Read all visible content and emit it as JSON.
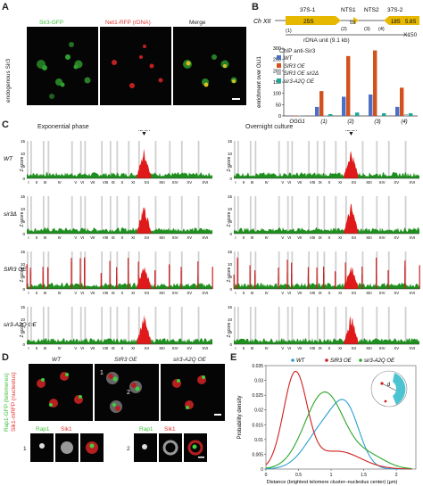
{
  "panelA": {
    "letter": "A",
    "side_label": "endogenous Sir3",
    "columns": [
      {
        "label": "Sir3-GFP",
        "color": "#3fbf3f"
      },
      {
        "label": "Net1-RFP (rDNA)",
        "color": "#e0332e"
      },
      {
        "label": "Merge",
        "color": "#222222"
      }
    ]
  },
  "panelB": {
    "letter": "B",
    "chrom": "Ch XII",
    "regions": [
      "37S-1",
      "NTS1",
      "NTS2",
      "37S-2"
    ],
    "genes": [
      "25S",
      "5S",
      "18S",
      "5.8S"
    ],
    "primers": [
      "(1)",
      "(2)",
      "(3)",
      "(4)"
    ],
    "unit_label": "rDNA unit (9.1 kb)",
    "x150": "X150",
    "ylabel": "enrichment  over OLI1",
    "legend_title": "ChIP anti-Sir3",
    "colors": {
      "WT": "#4b6fc4",
      "SIR3_OE": "#d2521d",
      "SIR3_OE_sir2": "#b8b8b8",
      "sir3_A2Q_OE": "#1fa69a"
    }
  },
  "chart_data": {
    "type": "bar",
    "categories": [
      "OGG1",
      "(1)",
      "(2)",
      "(3)",
      "(4)"
    ],
    "series": [
      {
        "name": "WT",
        "values": [
          1,
          40,
          85,
          95,
          40
        ]
      },
      {
        "name": "SIR3 OE",
        "values": [
          2,
          110,
          265,
          290,
          125
        ]
      },
      {
        "name": "SIR3 OE sir2Δ",
        "values": [
          1,
          3,
          5,
          3,
          8
        ]
      },
      {
        "name": "sir3-A2Q OE",
        "values": [
          1,
          8,
          15,
          12,
          12
        ]
      }
    ],
    "ylim": [
      0,
      300
    ],
    "yticks": [
      "0",
      "50",
      "100",
      "150",
      "200",
      "250",
      "300"
    ]
  },
  "panelC": {
    "letter": "C",
    "left_title": "Exponential phase",
    "right_title": "Overnight culture",
    "rdna_label": "rDNA",
    "ylabel": "Z-score",
    "rows": [
      "WT",
      "sir3Δ",
      "SIR3 OE",
      "sir3-A2Q OE"
    ],
    "yticks": [
      "0",
      "5",
      "10",
      "15"
    ],
    "chromosomes": [
      "I",
      "II",
      "III",
      "IV",
      "V",
      "VI",
      "VII",
      "VIII",
      "IX",
      "X",
      "XI",
      "XII",
      "XIII",
      "XIV",
      "XV",
      "XVI"
    ]
  },
  "panelD": {
    "letter": "D",
    "cols": [
      "WT",
      "SIR3 OE",
      "sir3-A2Q OE"
    ],
    "side_green": "Rap1-GFP (telomeres)",
    "side_red": "Sik1-mRFP (nucleolus)",
    "cell_marks": [
      "1",
      "2"
    ],
    "insets": [
      {
        "num": "1",
        "a": "Rap1",
        "b": "Sik1"
      },
      {
        "num": "2",
        "a": "Rap1",
        "b": "Sik1"
      }
    ]
  },
  "panelE": {
    "letter": "E",
    "ylabel": "Probability density",
    "xlabel": "Distance (brightest telomere cluster–nucleolus center) (µm)",
    "legend": [
      "WT",
      "SIR3 OE",
      "sir3-A2Q OE"
    ],
    "yticks": [
      "0",
      "0.005",
      "0.01",
      "0.015",
      "0.02",
      "0.025",
      "0.03",
      "0.035"
    ],
    "xticks": [
      "0",
      "0.5",
      "1",
      "1.5",
      "2"
    ],
    "inset_label": "d",
    "colors": {
      "WT": "#2a9fd0",
      "SIR3_OE": "#d21e1e",
      "sir3_A2Q_OE": "#2aa52a"
    }
  }
}
